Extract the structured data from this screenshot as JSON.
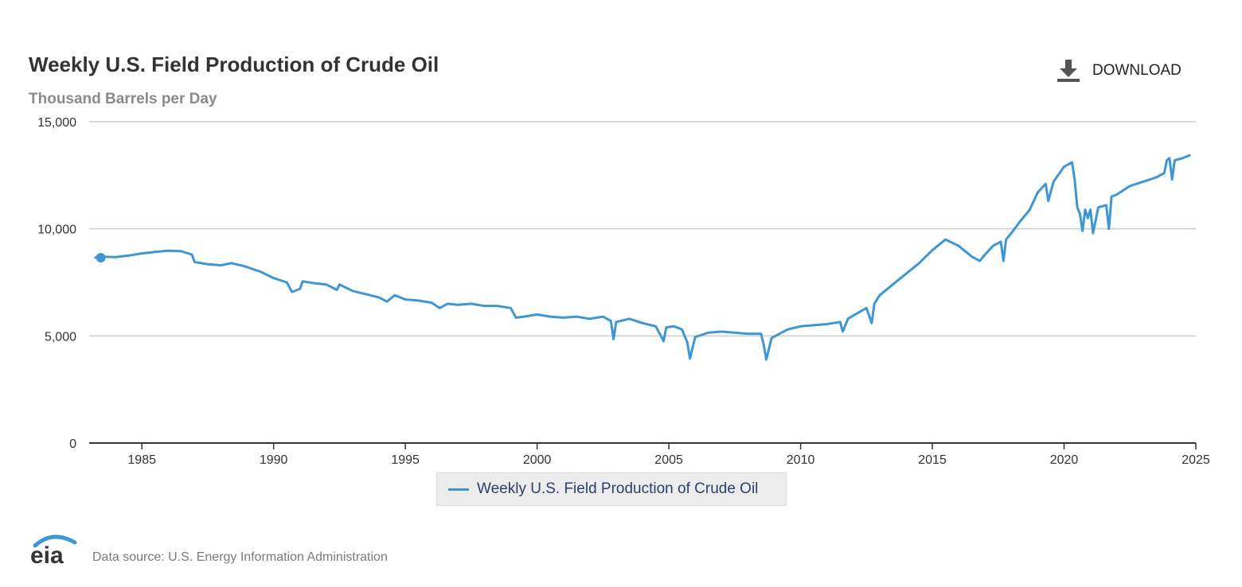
{
  "header": {
    "title": "Weekly U.S. Field Production of Crude Oil",
    "subtitle": "Thousand Barrels per Day",
    "download_label": "DOWNLOAD",
    "download_icon": "download-icon"
  },
  "legend": {
    "label": "Weekly U.S. Field Production of Crude Oil"
  },
  "footer": {
    "logo_text": "eia",
    "source": "Data source: U.S. Energy Information Administration"
  },
  "colors": {
    "series": "#3e97d4",
    "grid": "#cccccc",
    "axis": "#333333",
    "title": "#333333",
    "subtitle": "#8a8a8a"
  },
  "chart_data": {
    "type": "line",
    "title": "Weekly U.S. Field Production of Crude Oil",
    "ylabel": "Thousand Barrels per Day",
    "xlabel": "",
    "xlim": [
      1983.0,
      2025.0
    ],
    "ylim": [
      0,
      15000
    ],
    "x_ticks": [
      1985,
      1990,
      1995,
      2000,
      2005,
      2010,
      2015,
      2020,
      2025
    ],
    "x_tick_labels": [
      "1985",
      "1990",
      "1995",
      "2000",
      "2005",
      "2010",
      "2015",
      "2020",
      "2025"
    ],
    "y_ticks": [
      0,
      5000,
      10000,
      15000
    ],
    "y_tick_labels": [
      "0",
      "5,000",
      "10,000",
      "15,000"
    ],
    "grid": "horizontal",
    "legend_position": "bottom-center",
    "series": [
      {
        "name": "Weekly U.S. Field Production of Crude Oil",
        "color": "#3e97d4",
        "marker_first_point": true,
        "points": [
          [
            1983.2,
            8650
          ],
          [
            1983.5,
            8700
          ],
          [
            1984.0,
            8680
          ],
          [
            1984.5,
            8750
          ],
          [
            1985.0,
            8850
          ],
          [
            1985.5,
            8920
          ],
          [
            1986.0,
            8980
          ],
          [
            1986.5,
            8950
          ],
          [
            1986.9,
            8800
          ],
          [
            1987.0,
            8450
          ],
          [
            1987.5,
            8350
          ],
          [
            1988.0,
            8300
          ],
          [
            1988.4,
            8400
          ],
          [
            1988.9,
            8250
          ],
          [
            1989.5,
            8000
          ],
          [
            1990.0,
            7700
          ],
          [
            1990.5,
            7500
          ],
          [
            1990.7,
            7050
          ],
          [
            1991.0,
            7200
          ],
          [
            1991.1,
            7550
          ],
          [
            1991.6,
            7450
          ],
          [
            1992.0,
            7400
          ],
          [
            1992.4,
            7150
          ],
          [
            1992.5,
            7400
          ],
          [
            1993.0,
            7100
          ],
          [
            1993.5,
            6950
          ],
          [
            1994.0,
            6800
          ],
          [
            1994.3,
            6600
          ],
          [
            1994.6,
            6900
          ],
          [
            1995.0,
            6700
          ],
          [
            1995.5,
            6650
          ],
          [
            1996.0,
            6550
          ],
          [
            1996.3,
            6300
          ],
          [
            1996.6,
            6500
          ],
          [
            1997.0,
            6450
          ],
          [
            1997.5,
            6500
          ],
          [
            1998.0,
            6400
          ],
          [
            1998.5,
            6400
          ],
          [
            1999.0,
            6300
          ],
          [
            1999.2,
            5850
          ],
          [
            1999.5,
            5900
          ],
          [
            2000.0,
            6000
          ],
          [
            2000.5,
            5900
          ],
          [
            2001.0,
            5850
          ],
          [
            2001.5,
            5900
          ],
          [
            2002.0,
            5800
          ],
          [
            2002.5,
            5900
          ],
          [
            2002.8,
            5700
          ],
          [
            2002.9,
            4850
          ],
          [
            2003.0,
            5650
          ],
          [
            2003.5,
            5800
          ],
          [
            2004.0,
            5600
          ],
          [
            2004.5,
            5450
          ],
          [
            2004.7,
            5000
          ],
          [
            2004.8,
            4750
          ],
          [
            2004.9,
            5400
          ],
          [
            2005.2,
            5450
          ],
          [
            2005.5,
            5300
          ],
          [
            2005.7,
            4700
          ],
          [
            2005.8,
            3950
          ],
          [
            2006.0,
            4950
          ],
          [
            2006.5,
            5150
          ],
          [
            2007.0,
            5200
          ],
          [
            2007.5,
            5150
          ],
          [
            2008.0,
            5100
          ],
          [
            2008.5,
            5100
          ],
          [
            2008.6,
            4600
          ],
          [
            2008.7,
            3900
          ],
          [
            2008.9,
            4900
          ],
          [
            2009.5,
            5300
          ],
          [
            2010.0,
            5450
          ],
          [
            2010.5,
            5500
          ],
          [
            2011.0,
            5550
          ],
          [
            2011.5,
            5650
          ],
          [
            2011.6,
            5200
          ],
          [
            2011.8,
            5800
          ],
          [
            2012.0,
            5950
          ],
          [
            2012.5,
            6300
          ],
          [
            2012.7,
            5600
          ],
          [
            2012.8,
            6500
          ],
          [
            2013.0,
            6900
          ],
          [
            2013.5,
            7400
          ],
          [
            2014.0,
            7900
          ],
          [
            2014.5,
            8400
          ],
          [
            2015.0,
            9000
          ],
          [
            2015.5,
            9500
          ],
          [
            2016.0,
            9200
          ],
          [
            2016.5,
            8700
          ],
          [
            2016.8,
            8500
          ],
          [
            2017.0,
            8800
          ],
          [
            2017.3,
            9200
          ],
          [
            2017.6,
            9400
          ],
          [
            2017.7,
            8500
          ],
          [
            2017.8,
            9500
          ],
          [
            2018.0,
            9800
          ],
          [
            2018.3,
            10300
          ],
          [
            2018.7,
            10900
          ],
          [
            2019.0,
            11700
          ],
          [
            2019.3,
            12100
          ],
          [
            2019.4,
            11300
          ],
          [
            2019.6,
            12200
          ],
          [
            2020.0,
            12900
          ],
          [
            2020.3,
            13100
          ],
          [
            2020.4,
            12300
          ],
          [
            2020.5,
            11000
          ],
          [
            2020.6,
            10700
          ],
          [
            2020.7,
            9900
          ],
          [
            2020.8,
            10900
          ],
          [
            2020.9,
            10500
          ],
          [
            2021.0,
            10900
          ],
          [
            2021.1,
            9800
          ],
          [
            2021.3,
            11000
          ],
          [
            2021.6,
            11100
          ],
          [
            2021.7,
            10000
          ],
          [
            2021.8,
            11500
          ],
          [
            2022.0,
            11600
          ],
          [
            2022.5,
            12000
          ],
          [
            2023.0,
            12200
          ],
          [
            2023.5,
            12400
          ],
          [
            2023.8,
            12600
          ],
          [
            2023.9,
            13200
          ],
          [
            2024.0,
            13300
          ],
          [
            2024.1,
            12300
          ],
          [
            2024.2,
            13200
          ],
          [
            2024.5,
            13300
          ],
          [
            2024.8,
            13450
          ]
        ]
      }
    ]
  }
}
